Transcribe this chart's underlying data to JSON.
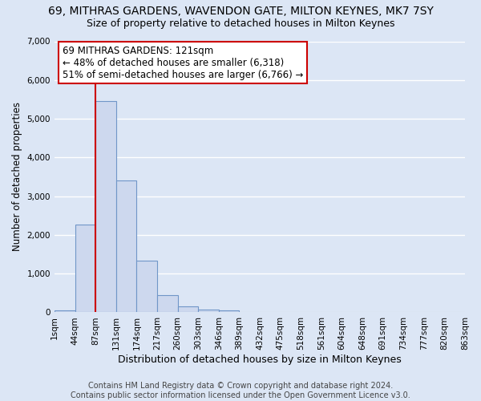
{
  "title": "69, MITHRAS GARDENS, WAVENDON GATE, MILTON KEYNES, MK7 7SY",
  "subtitle": "Size of property relative to detached houses in Milton Keynes",
  "xlabel": "Distribution of detached houses by size in Milton Keynes",
  "ylabel": "Number of detached properties",
  "bar_color": "#cdd8ee",
  "bar_edge_color": "#7096c8",
  "background_color": "#dce6f5",
  "plot_bg_color": "#dce6f5",
  "grid_color": "#ffffff",
  "vline_x": 2,
  "vline_color": "#cc0000",
  "annotation_text": "69 MITHRAS GARDENS: 121sqm\n← 48% of detached houses are smaller (6,318)\n51% of semi-detached houses are larger (6,766) →",
  "annotation_box_color": "#ffffff",
  "annotation_box_edge_color": "#cc0000",
  "bin_labels": [
    "1sqm",
    "44sqm",
    "87sqm",
    "131sqm",
    "174sqm",
    "217sqm",
    "260sqm",
    "303sqm",
    "346sqm",
    "389sqm",
    "432sqm",
    "475sqm",
    "518sqm",
    "561sqm",
    "604sqm",
    "648sqm",
    "691sqm",
    "734sqm",
    "777sqm",
    "820sqm",
    "863sqm"
  ],
  "bar_heights": [
    60,
    2270,
    5450,
    3400,
    1330,
    450,
    160,
    80,
    50,
    0,
    0,
    0,
    0,
    0,
    0,
    0,
    0,
    0,
    0,
    0
  ],
  "n_bins": 20,
  "ylim": [
    0,
    7000
  ],
  "yticks": [
    0,
    1000,
    2000,
    3000,
    4000,
    5000,
    6000,
    7000
  ],
  "footer_text": "Contains HM Land Registry data © Crown copyright and database right 2024.\nContains public sector information licensed under the Open Government Licence v3.0.",
  "title_fontsize": 10,
  "subtitle_fontsize": 9,
  "xlabel_fontsize": 9,
  "ylabel_fontsize": 8.5,
  "tick_fontsize": 7.5,
  "annotation_fontsize": 8.5,
  "footer_fontsize": 7
}
